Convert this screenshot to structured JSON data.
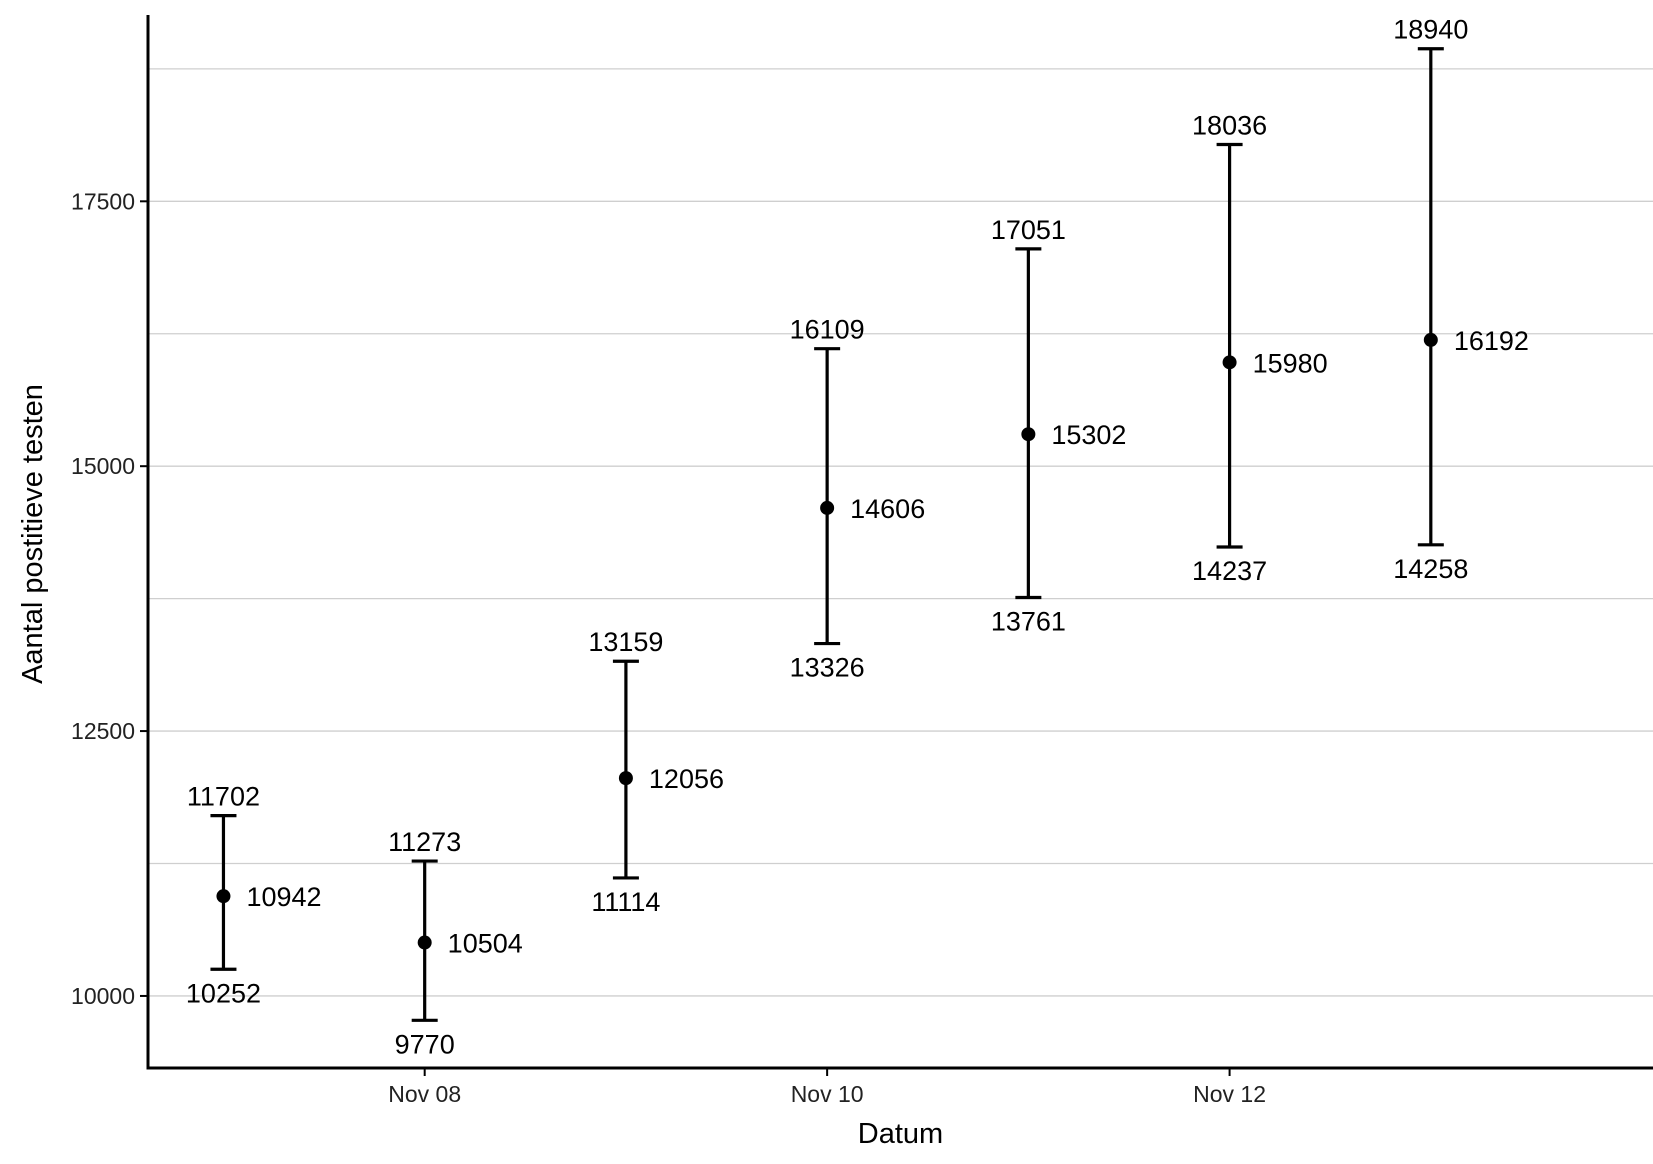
{
  "chart_data": {
    "type": "scatter",
    "title": "",
    "xlabel": "Datum",
    "ylabel": "Aantal postitieve testen",
    "x_tick_labels": [
      {
        "date": "2020-11-08",
        "label": "Nov 08"
      },
      {
        "date": "2020-11-10",
        "label": "Nov 10"
      },
      {
        "date": "2020-11-12",
        "label": "Nov 12"
      }
    ],
    "y_ticks": [
      10000,
      12500,
      15000,
      17500
    ],
    "y_tick_labels": [
      "10000",
      "12500",
      "15000",
      "17500"
    ],
    "ylim": [
      9320,
      19400
    ],
    "xlim": [
      "2020-11-06T15:00",
      "2020-11-14T02:30"
    ],
    "grid": "horizontal",
    "legend": "none",
    "points": [
      {
        "date": "2020-11-07",
        "value": 10942,
        "lower": 10252,
        "upper": 11702
      },
      {
        "date": "2020-11-08",
        "value": 10504,
        "lower": 9770,
        "upper": 11273
      },
      {
        "date": "2020-11-09",
        "value": 12056,
        "lower": 11114,
        "upper": 13159
      },
      {
        "date": "2020-11-10",
        "value": 14606,
        "lower": 13326,
        "upper": 16109
      },
      {
        "date": "2020-11-11",
        "value": 15302,
        "lower": 13761,
        "upper": 17051
      },
      {
        "date": "2020-11-12",
        "value": 15980,
        "lower": 14237,
        "upper": 18036
      },
      {
        "date": "2020-11-13",
        "value": 16192,
        "lower": 14258,
        "upper": 18940
      }
    ]
  }
}
